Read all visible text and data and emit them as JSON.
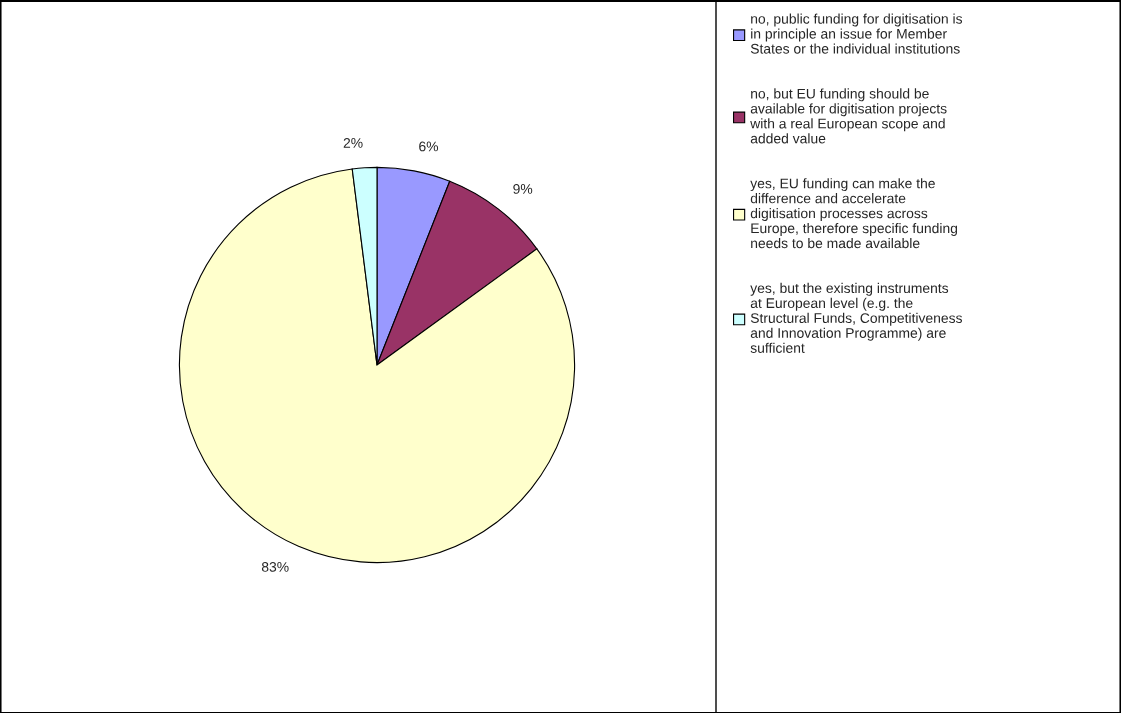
{
  "chart_data": {
    "type": "pie",
    "categories": [
      "no, public funding for digitisation is\nin principle an issue for Member\nStates or the individual institutions",
      "no, but EU funding should be\navailable for digitisation projects\nwith a real European scope and\nadded value",
      "yes, EU funding can make the\ndifference and accelerate\ndigitisation processes across\nEurope, therefore specific funding\nneeds to be made available",
      "yes, but the existing instruments\nat European level (e.g. the\nStructural Funds, Competitiveness\nand Innovation Programme) are\nsufficient"
    ],
    "values": [
      6,
      9,
      83,
      2
    ],
    "colors": [
      "#9999ff",
      "#993366",
      "#ffffcc",
      "#ccffff"
    ],
    "value_labels": [
      "6%",
      "9%",
      "83%",
      "2%"
    ],
    "legend": "right"
  }
}
